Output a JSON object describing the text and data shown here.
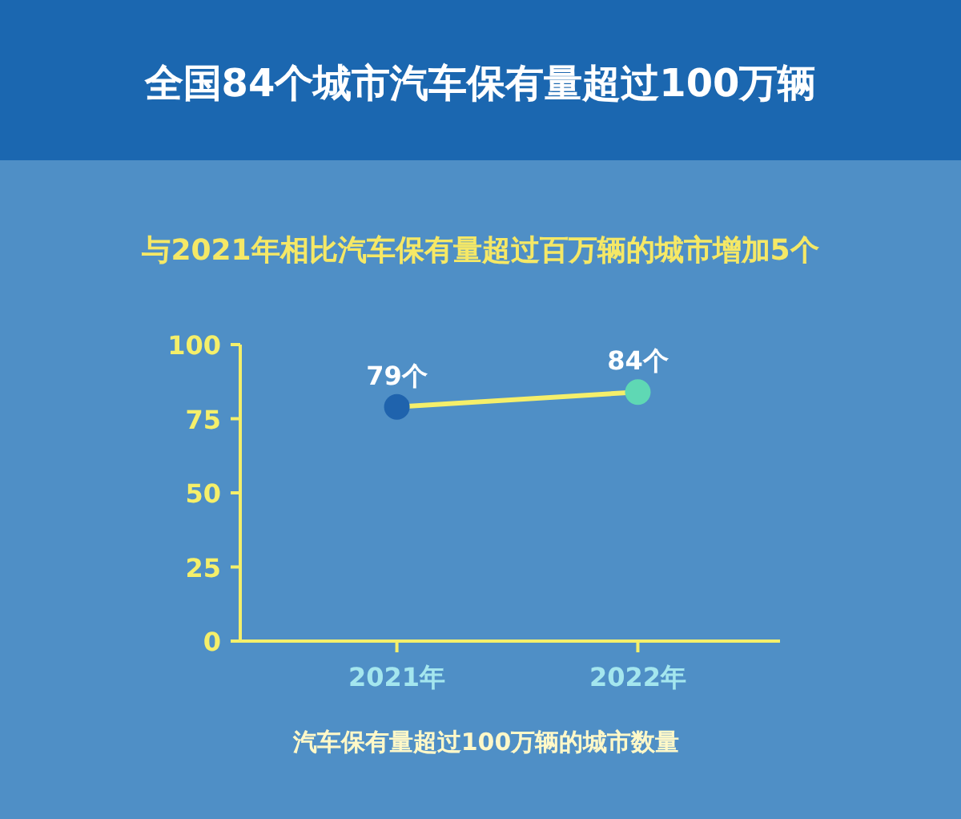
{
  "chart_data": {
    "type": "line",
    "title": "全国84个城市汽车保有量超过100万辆",
    "subtitle": "与2021年相比汽车保有量超过百万辆的城市增加5个",
    "xlabel": "汽车保有量超过100万辆的城市数量",
    "categories": [
      "2021年",
      "2022年"
    ],
    "series": [
      {
        "color": "#f5ef6a",
        "colors": [
          "#1f63ad",
          "#5fd8b4"
        ],
        "values": [
          79,
          84
        ],
        "value_labels": [
          "79个",
          "84个"
        ]
      }
    ],
    "ylim": [
      0,
      100
    ],
    "yticks": [
      0,
      25,
      50,
      75,
      100
    ],
    "marker": "circle",
    "grid": false
  }
}
